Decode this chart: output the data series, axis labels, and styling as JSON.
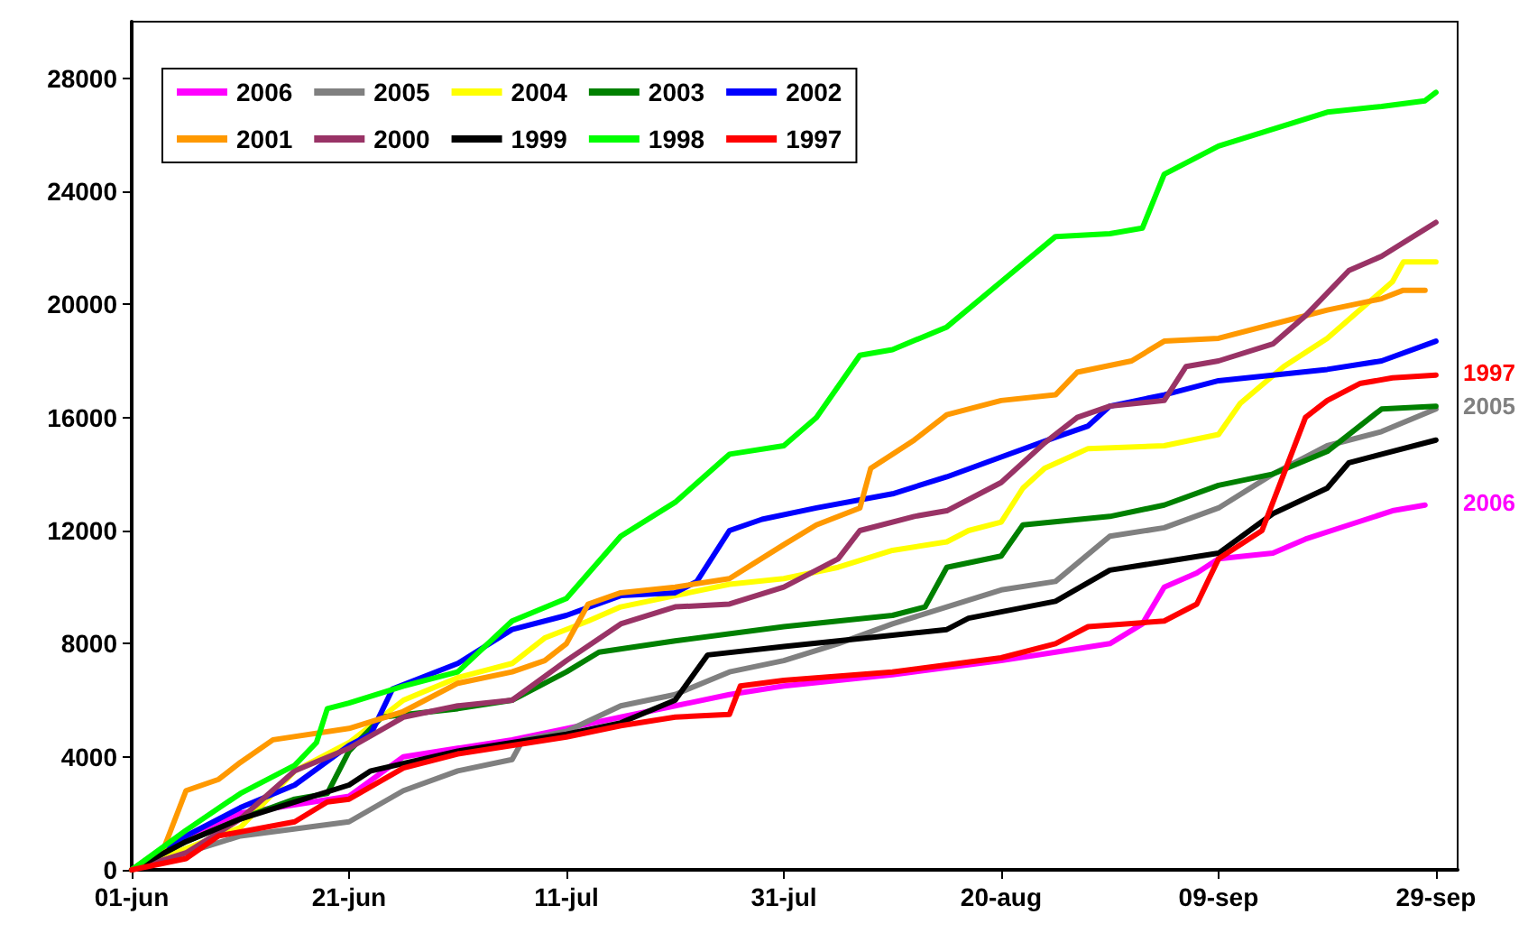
{
  "chart_data": {
    "type": "line",
    "xlim": [
      "--06-01",
      "--10-01"
    ],
    "ylim": [
      0,
      30000
    ],
    "xticks": [
      {
        "value": "--06-01",
        "label": "01-jun"
      },
      {
        "value": "--06-21",
        "label": "21-jun"
      },
      {
        "value": "--07-11",
        "label": "11-jul"
      },
      {
        "value": "--07-31",
        "label": "31-jul"
      },
      {
        "value": "--08-20",
        "label": "20-aug"
      },
      {
        "value": "--09-09",
        "label": "09-sep"
      },
      {
        "value": "--09-29",
        "label": "29-sep"
      }
    ],
    "yticks": [
      0,
      4000,
      8000,
      12000,
      16000,
      20000,
      24000,
      28000
    ],
    "grid": false,
    "legend": "top left",
    "marker": "none",
    "line_style": "solid",
    "series": [
      {
        "name": "2006",
        "color": "#ff00ff",
        "x": [
          "--06-01",
          "--06-06",
          "--06-11",
          "--06-21",
          "--06-26",
          "--07-06",
          "--07-11",
          "--07-16",
          "--07-21",
          "--07-26",
          "--07-31",
          "--08-10",
          "--08-20",
          "--08-25",
          "--08-30",
          "--09-02",
          "--09-04",
          "--09-07",
          "--09-09",
          "--09-14",
          "--09-17",
          "--09-21",
          "--09-25",
          "--09-28"
        ],
        "values": [
          0,
          1200,
          2000,
          2600,
          4000,
          4600,
          5000,
          5400,
          5800,
          6200,
          6500,
          6900,
          7400,
          7700,
          8000,
          8700,
          10000,
          10500,
          11000,
          11200,
          11700,
          12200,
          12700,
          12900
        ]
      },
      {
        "name": "2005",
        "color": "#808080",
        "x": [
          "--06-01",
          "--06-06",
          "--06-11",
          "--06-21",
          "--06-26",
          "--07-01",
          "--07-06",
          "--07-07",
          "--07-11",
          "--07-16",
          "--07-21",
          "--07-26",
          "--07-31",
          "--08-05",
          "--08-10",
          "--08-15",
          "--08-20",
          "--08-25",
          "--08-30",
          "--09-04",
          "--09-09",
          "--09-14",
          "--09-19",
          "--09-24",
          "--09-29"
        ],
        "values": [
          0,
          600,
          1200,
          1700,
          2800,
          3500,
          3900,
          4600,
          4900,
          5800,
          6200,
          7000,
          7400,
          8000,
          8700,
          9300,
          9900,
          10200,
          11800,
          12100,
          12800,
          14000,
          15000,
          15500,
          16300
        ]
      },
      {
        "name": "2004",
        "color": "#ffff00",
        "x": [
          "--06-01",
          "--06-11",
          "--06-16",
          "--06-21",
          "--06-26",
          "--07-01",
          "--07-06",
          "--07-09",
          "--07-13",
          "--07-16",
          "--07-21",
          "--07-26",
          "--07-31",
          "--08-05",
          "--08-10",
          "--08-15",
          "--08-17",
          "--08-20",
          "--08-22",
          "--08-24",
          "--08-28",
          "--09-04",
          "--09-09",
          "--09-11",
          "--09-15",
          "--09-19",
          "--09-22",
          "--09-25",
          "--09-26",
          "--09-29"
        ],
        "values": [
          0,
          1500,
          3500,
          4500,
          6000,
          6800,
          7300,
          8200,
          8800,
          9300,
          9700,
          10100,
          10300,
          10700,
          11300,
          11600,
          12000,
          12300,
          13500,
          14200,
          14900,
          15000,
          15400,
          16500,
          17800,
          18800,
          19800,
          20800,
          21500,
          21500
        ]
      },
      {
        "name": "2003",
        "color": "#008000",
        "x": [
          "--06-01",
          "--06-06",
          "--06-11",
          "--06-16",
          "--06-19",
          "--06-21",
          "--06-24",
          "--07-01",
          "--07-06",
          "--07-11",
          "--07-14",
          "--07-21",
          "--07-31",
          "--08-10",
          "--08-13",
          "--08-15",
          "--08-20",
          "--08-22",
          "--08-30",
          "--09-04",
          "--09-09",
          "--09-14",
          "--09-19",
          "--09-24",
          "--09-29"
        ],
        "values": [
          0,
          1000,
          1800,
          2500,
          2700,
          4200,
          5400,
          5700,
          6000,
          7000,
          7700,
          8100,
          8600,
          9000,
          9300,
          10700,
          11100,
          12200,
          12500,
          12900,
          13600,
          14000,
          14800,
          16300,
          16400
        ]
      },
      {
        "name": "2002",
        "color": "#0000ff",
        "x": [
          "--06-01",
          "--06-06",
          "--06-11",
          "--06-16",
          "--06-21",
          "--06-23",
          "--06-25",
          "--07-01",
          "--07-06",
          "--07-11",
          "--07-16",
          "--07-21",
          "--07-23",
          "--07-26",
          "--07-29",
          "--08-03",
          "--08-10",
          "--08-15",
          "--08-20",
          "--08-25",
          "--08-28",
          "--08-30",
          "--09-04",
          "--09-09",
          "--09-14",
          "--09-19",
          "--09-24",
          "--09-29"
        ],
        "values": [
          0,
          1200,
          2200,
          3000,
          4400,
          4800,
          6400,
          7300,
          8500,
          9000,
          9700,
          9800,
          10200,
          12000,
          12400,
          12800,
          13300,
          13900,
          14600,
          15300,
          15700,
          16400,
          16800,
          17300,
          17500,
          17700,
          18000,
          18700
        ]
      },
      {
        "name": "2001",
        "color": "#ff9900",
        "x": [
          "--06-01",
          "--06-04",
          "--06-06",
          "--06-09",
          "--06-11",
          "--06-14",
          "--06-21",
          "--06-26",
          "--07-01",
          "--07-06",
          "--07-09",
          "--07-11",
          "--07-13",
          "--07-16",
          "--07-21",
          "--07-26",
          "--07-31",
          "--08-03",
          "--08-07",
          "--08-08",
          "--08-12",
          "--08-15",
          "--08-20",
          "--08-25",
          "--08-27",
          "--09-01",
          "--09-04",
          "--09-09",
          "--09-14",
          "--09-19",
          "--09-24",
          "--09-26",
          "--09-28"
        ],
        "values": [
          0,
          800,
          2800,
          3200,
          3800,
          4600,
          5000,
          5600,
          6600,
          7000,
          7400,
          8000,
          9400,
          9800,
          10000,
          10300,
          11500,
          12200,
          12800,
          14200,
          15200,
          16100,
          16600,
          16800,
          17600,
          18000,
          18700,
          18800,
          19300,
          19800,
          20200,
          20500,
          20500
        ]
      },
      {
        "name": "2000",
        "color": "#993366",
        "x": [
          "--06-01",
          "--06-06",
          "--06-11",
          "--06-16",
          "--06-21",
          "--06-26",
          "--07-01",
          "--07-06",
          "--07-11",
          "--07-16",
          "--07-21",
          "--07-26",
          "--07-31",
          "--08-05",
          "--08-07",
          "--08-12",
          "--08-15",
          "--08-20",
          "--08-24",
          "--08-27",
          "--08-30",
          "--09-04",
          "--09-06",
          "--09-09",
          "--09-14",
          "--09-17",
          "--09-21",
          "--09-24",
          "--09-29"
        ],
        "values": [
          0,
          600,
          1800,
          3500,
          4300,
          5400,
          5800,
          6000,
          7400,
          8700,
          9300,
          9400,
          10000,
          11000,
          12000,
          12500,
          12700,
          13700,
          15100,
          16000,
          16400,
          16600,
          17800,
          18000,
          18600,
          19600,
          21200,
          21700,
          22900
        ]
      },
      {
        "name": "1999",
        "color": "#000000",
        "x": [
          "--06-01",
          "--06-06",
          "--06-11",
          "--06-16",
          "--06-21",
          "--06-23",
          "--07-01",
          "--07-06",
          "--07-11",
          "--07-16",
          "--07-21",
          "--07-24",
          "--07-31",
          "--08-10",
          "--08-15",
          "--08-17",
          "--08-25",
          "--08-30",
          "--09-04",
          "--09-09",
          "--09-14",
          "--09-19",
          "--09-21",
          "--09-24",
          "--09-29"
        ],
        "values": [
          0,
          1000,
          1800,
          2400,
          3000,
          3500,
          4200,
          4500,
          4800,
          5200,
          6000,
          7600,
          7900,
          8300,
          8500,
          8900,
          9500,
          10600,
          10900,
          11200,
          12600,
          13500,
          14400,
          14700,
          15200
        ]
      },
      {
        "name": "1998",
        "color": "#00ff00",
        "x": [
          "--06-01",
          "--06-06",
          "--06-11",
          "--06-16",
          "--06-18",
          "--06-19",
          "--06-21",
          "--06-26",
          "--07-01",
          "--07-06",
          "--07-11",
          "--07-16",
          "--07-21",
          "--07-26",
          "--07-31",
          "--08-03",
          "--08-07",
          "--08-10",
          "--08-15",
          "--08-20",
          "--08-25",
          "--08-30",
          "--09-02",
          "--09-04",
          "--09-09",
          "--09-14",
          "--09-19",
          "--09-24",
          "--09-28",
          "--09-29"
        ],
        "values": [
          0,
          1400,
          2700,
          3700,
          4500,
          5700,
          5900,
          6500,
          7000,
          8800,
          9600,
          11800,
          13000,
          14700,
          15000,
          16000,
          18200,
          18400,
          19200,
          20800,
          22400,
          22500,
          22700,
          24600,
          25600,
          26200,
          26800,
          27000,
          27200,
          27500
        ]
      },
      {
        "name": "1997",
        "color": "#ff0000",
        "x": [
          "--06-01",
          "--06-06",
          "--06-09",
          "--06-16",
          "--06-19",
          "--06-21",
          "--06-26",
          "--07-01",
          "--07-11",
          "--07-16",
          "--07-21",
          "--07-26",
          "--07-27",
          "--07-31",
          "--08-10",
          "--08-20",
          "--08-25",
          "--08-28",
          "--09-04",
          "--09-07",
          "--09-09",
          "--09-13",
          "--09-15",
          "--09-17",
          "--09-19",
          "--09-22",
          "--09-25",
          "--09-29"
        ],
        "values": [
          0,
          400,
          1200,
          1700,
          2400,
          2500,
          3600,
          4100,
          4700,
          5100,
          5400,
          5500,
          6500,
          6700,
          7000,
          7500,
          8000,
          8600,
          8800,
          9400,
          11000,
          12000,
          14000,
          16000,
          16600,
          17200,
          17400,
          17500
        ]
      }
    ],
    "annotations": [
      {
        "text": "1997",
        "x": "--09-29",
        "y": 17500
      },
      {
        "text": "2005",
        "x": "--09-29",
        "y": 16300
      },
      {
        "text": "2006",
        "x": "--09-28",
        "y": 12900
      }
    ]
  }
}
